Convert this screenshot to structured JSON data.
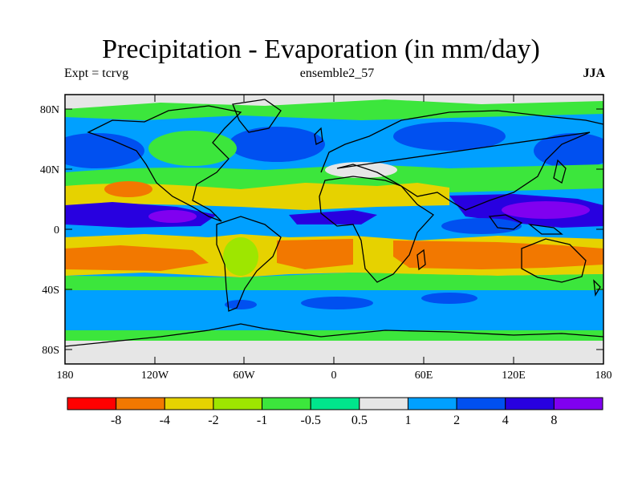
{
  "title": "Precipitation - Evaporation (in mm/day)",
  "subtitle_left": "Expt = tcrvg",
  "subtitle_center": "ensemble2_57",
  "subtitle_right": "JJA",
  "lat_labels": [
    "80N",
    "40N",
    "0",
    "40S",
    "80S"
  ],
  "lon_labels": [
    "180",
    "120W",
    "60W",
    "0",
    "60E",
    "120E",
    "180"
  ],
  "colorbar": {
    "colors": [
      "#ff0000",
      "#f27800",
      "#e6d200",
      "#9ee600",
      "#3ce63c",
      "#00e68c",
      "#e6e6e6",
      "#00a0ff",
      "#0050f0",
      "#2800e0",
      "#8000f0"
    ],
    "labels": [
      "-8",
      "-4",
      "-2",
      "-1",
      "-0.5",
      "0.5",
      "1",
      "2",
      "4",
      "8"
    ]
  },
  "palette": {
    "dry_strong": "#f27800",
    "dry": "#e6d200",
    "dry_weak": "#9ee600",
    "neutral_low": "#3ce63c",
    "neutral_high": "#00e68c",
    "neutral": "#e6e6e6",
    "wet": "#00a0ff",
    "wet_moderate": "#0050f0",
    "wet_strong": "#2800e0",
    "wet_extreme": "#8000f0"
  }
}
